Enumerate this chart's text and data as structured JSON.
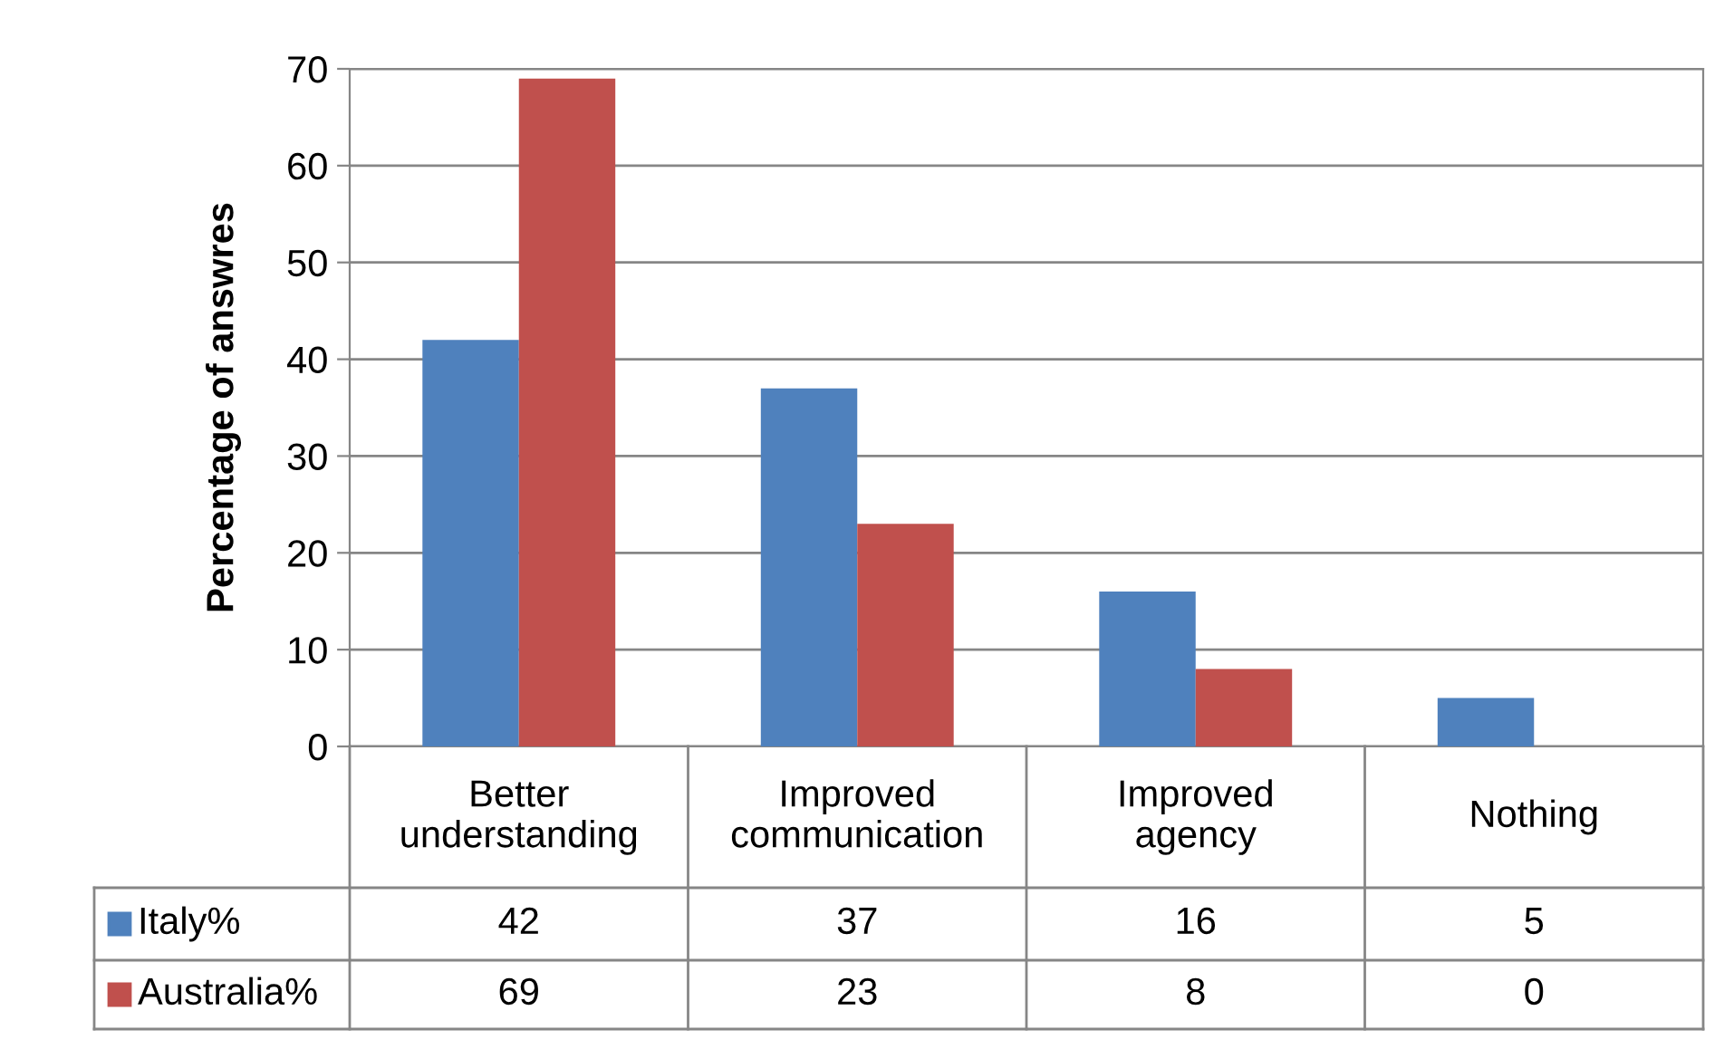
{
  "chart_data": {
    "type": "bar",
    "ylabel": "Percentage of answres",
    "categories": [
      "Better understanding",
      "Improved communication",
      "Improved agency",
      "Nothing"
    ],
    "series": [
      {
        "name": "Italy%",
        "color": "#4f81bd",
        "values": [
          42,
          37,
          16,
          5
        ]
      },
      {
        "name": "Australia%",
        "color": "#c0504d",
        "values": [
          69,
          23,
          8,
          0
        ]
      }
    ],
    "ylim": [
      0,
      70
    ],
    "yticks": [
      0,
      10,
      20,
      30,
      40,
      50,
      60,
      70
    ],
    "grid": "y",
    "legend": "bottom",
    "data_labels": true
  }
}
